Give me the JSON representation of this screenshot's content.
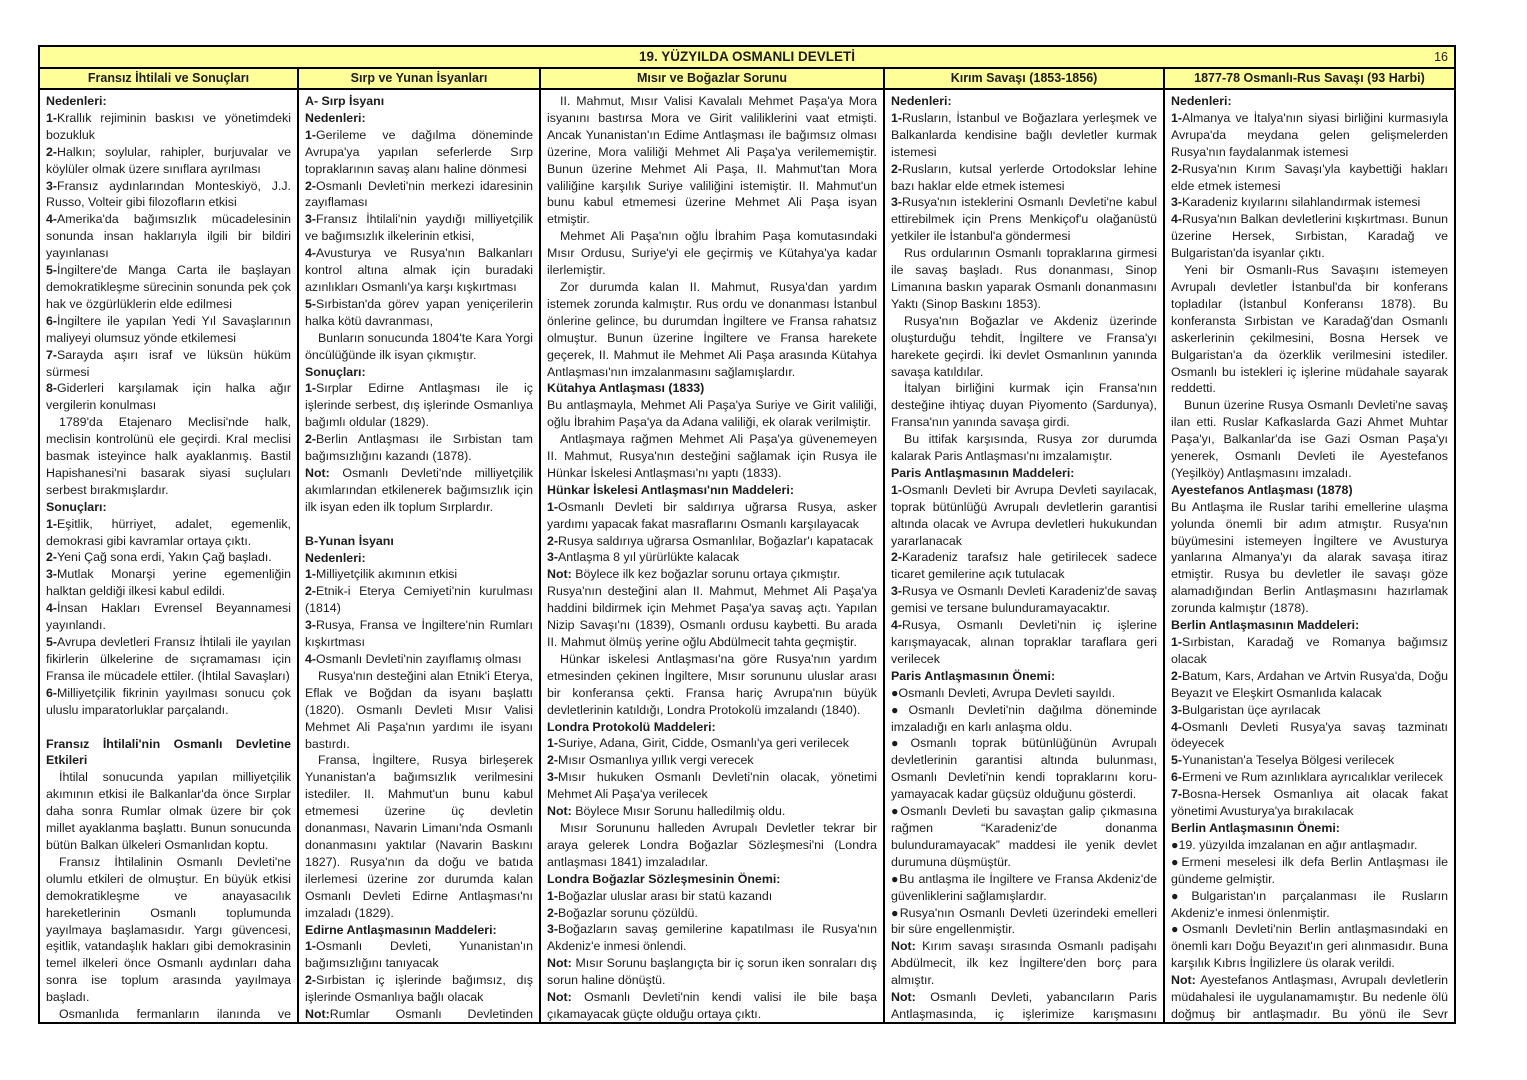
{
  "page": {
    "title": "19. YÜZYILDA OSMANLI DEVLETİ",
    "number": "16"
  },
  "colors": {
    "header_bg": "#FFFF99",
    "border": "#000000",
    "text": "#1c1c1c"
  },
  "columns": [
    {
      "header": "Fransız İhtilali ve Sonuçları",
      "blocks": [
        {
          "h": 1,
          "t": "Nedenleri:"
        },
        {
          "b": "1-",
          "t": "Krallık rejiminin baskısı ve yönetimdeki bozukluk"
        },
        {
          "b": "2-",
          "t": "Halkın; soylular, rahipler, burjuvalar ve köylüler olmak üzere sınıflara ayrılması"
        },
        {
          "b": "3-",
          "t": "Fransız aydınlarından Monteskiyö, J.J. Russo, Volteir gibi filozofların etkisi"
        },
        {
          "b": "4-",
          "t": "Amerika'da bağımsızlık mücadelesinin sonunda insan haklarıyla ilgili bir bildiri yayınlanası"
        },
        {
          "b": "5-",
          "t": "İngiltere'de Manga Carta ile başlayan demokratikleşme sürecinin sonunda pek çok hak ve özgürlüklerin elde edilmesi"
        },
        {
          "b": "6-",
          "t": "İngiltere ile yapılan Yedi Yıl Savaşlarının maliyeyi olumsuz yönde etkilemesi"
        },
        {
          "b": "7-",
          "t": "Sarayda aşırı israf ve lüksün hüküm sürmesi"
        },
        {
          "b": "8-",
          "t": "Giderleri karşılamak için halka ağır vergilerin konulması"
        },
        {
          "i": 1,
          "t": "1789'da Etajenaro Meclisi'nde halk, meclisin kontrolünü ele geçirdi. Kral meclisi basmak isteyince halk ayaklanmış. Bastil Hapishanesi'ni basarak siyasi suçluları serbest bırakmışlardır."
        },
        {
          "h": 1,
          "t": "Sonuçları:"
        },
        {
          "b": "1-",
          "t": "Eşitlik, hürriyet, adalet, egemenlik, demokrasi gibi kavramlar ortaya çıktı."
        },
        {
          "b": "2-",
          "t": "Yeni Çağ sona erdi, Yakın Çağ başladı."
        },
        {
          "b": "3-",
          "t": "Mutlak Monarşi yerine egemenliğin halktan geldiği ilkesi kabul edildi."
        },
        {
          "b": "4-",
          "t": "İnsan Hakları Evrensel Beyannamesi yayınlandı."
        },
        {
          "b": "5-",
          "t": "Avrupa devletleri Fransız İhtilali ile yayılan fikirlerin ülkelerine de sıçramaması için Fransa ile mücadele ettiler. (İhtilal Savaşları)"
        },
        {
          "b": "6-",
          "t": "Milliyetçilik fikrinin yayılması sonucu çok uluslu imparatorluklar parçalandı."
        },
        {
          "h": 1,
          "gap": 1,
          "t": "Fransız İhtilali'nin Osmanlı Devletine Etkileri"
        },
        {
          "i": 1,
          "t": "İhtilal sonucunda yapılan milliyetçilik akımının etkisi ile Balkanlar'da önce Sırplar daha sonra Rumlar olmak üzere bir çok millet ayaklanma başlattı. Bunun sonucunda bütün Balkan ülkeleri Osmanlıdan koptu."
        },
        {
          "i": 1,
          "t": "Fransız İhtilalinin Osmanlı Devleti'ne olumlu etkileri de olmuştur. En büyük etkisi demokratikleşme ve anayasacılık hareketlerinin Osmanlı toplumunda yayılmaya başlamasıdır. Yargı güvencesi, eşitlik, vatandaşlık hakları gibi demokrasinin temel ilkeleri önce Osmanlı aydınları daha sonra ise toplum arasında yayılmaya başladı."
        },
        {
          "i": 1,
          "t": "Osmanlıda fermanların ilanında ve meşrutiyetin kabulünde etkili olmuştur."
        }
      ]
    },
    {
      "header": "Sırp ve Yunan İsyanları",
      "blocks": [
        {
          "h": 1,
          "t": "A- Sırp İsyanı"
        },
        {
          "h": 1,
          "t": "Nedenleri:"
        },
        {
          "b": "1-",
          "t": "Gerileme ve dağılma döneminde Avrupa'ya yapılan seferlerde Sırp topraklarının savaş alanı haline dönmesi"
        },
        {
          "b": "2-",
          "t": "Osmanlı Devleti'nin merkezi idaresinin zayıflaması"
        },
        {
          "b": "3-",
          "t": "Fransız İhtilali'nin yaydığı milliyetçilik ve bağımsızlık ilkelerinin etkisi,"
        },
        {
          "b": "4-",
          "t": "Avusturya ve Rusya'nın Balkanları kontrol altına almak için buradaki azınlıkları Osmanlı'ya karşı kışkırtması"
        },
        {
          "b": "5-",
          "t": "Sırbistan'da görev yapan yeniçerilerin halka kötü davranması,"
        },
        {
          "i": 1,
          "t": "Bunların sonucunda 1804'te Kara Yorgi öncülüğünde ilk isyan çıkmıştır."
        },
        {
          "h": 1,
          "t": "Sonuçları:"
        },
        {
          "b": "1-",
          "t": "Sırplar Edirne Antlaşması ile iç işlerinde serbest, dış işlerinde Osmanlıya bağımlı oldular (1829)."
        },
        {
          "b": "2-",
          "t": "Berlin Antlaşması ile Sırbistan tam bağımsızlığını kazandı (1878)."
        },
        {
          "b": "Not:",
          "t": " Osmanlı Devleti'nde milliyetçilik akımlarından etkilenerek bağımsızlık için ilk isyan eden ilk toplum Sırplardır."
        },
        {
          "h": 1,
          "gap": 1,
          "t": "B-Yunan İsyanı"
        },
        {
          "h": 1,
          "t": "Nedenleri:"
        },
        {
          "b": "1-",
          "t": "Milliyetçilik akımının etkisi"
        },
        {
          "b": "2-",
          "t": "Etnik-i Eterya Cemiyeti'nin kurulması (1814)"
        },
        {
          "b": "3-",
          "t": "Rusya, Fransa ve İngiltere'nin Rumları kışkırtması"
        },
        {
          "b": "4-",
          "t": "Osmanlı Devleti'nin zayıflamış olması"
        },
        {
          "i": 1,
          "t": "Rusya'nın desteğini alan Etnik'i Eterya, Eflak ve Boğdan da isyanı başlattı (1820). Osmanlı Devleti Mısır Valisi Mehmet Ali Paşa'nın yardımı ile isyanı bastırdı."
        },
        {
          "i": 1,
          "t": "Fransa, İngiltere, Rusya birleşerek Yunanistan'a bağımsızlık verilmesini istediler. II. Mahmut'un bunu kabul etmemesi üzerine üç devletin donanması, Navarin Limanı'nda Osmanlı donanmasını yaktılar (Navarin Baskını 1827). Rusya'nın da doğu ve batıda ilerlemesi üzerine zor durumda kalan Osmanlı Devleti Edirne Antlaşması'nı imzaladı (1829)."
        },
        {
          "h": 1,
          "t": "Edirne Antlaşmasının Maddeleri:"
        },
        {
          "b": "1-",
          "t": "Osmanlı Devleti, Yunanistan'ın bağımsızlığını tanıyacak"
        },
        {
          "b": "2-",
          "t": "Sırbistan iç işlerinde bağımsız, dış işlerinde Osmanlıya bağlı olacak"
        },
        {
          "b": "Not:",
          "t": "Rumlar Osmanlı Devletinden ayrılarak bağımsız olan ilk millet olmuştur."
        }
      ]
    },
    {
      "header": "Mısır ve Boğazlar Sorunu",
      "blocks": [
        {
          "i": 1,
          "t": "II. Mahmut, Mısır Valisi Kavalalı Mehmet Paşa'ya Mora isyanını bastırsa Mora ve Girit valiliklerini vaat etmişti. Ancak Yunanistan'ın Edime Antlaşması ile bağımsız olması üzerine, Mora valiliği Mehmet Ali Paşa'ya verilememiştir. Bunun üzerine Mehmet Ali Paşa, II. Mahmut'tan Mora valiliğine karşılık Suriye valiliğini istemiştir. II. Mahmut'un bunu kabul etmemesi üzerine Mehmet Ali Paşa isyan etmiştir."
        },
        {
          "i": 1,
          "t": "Mehmet Ali Paşa'nın oğlu İbrahim Paşa komutasındaki Mısır Ordusu, Suriye'yi ele geçirmiş ve Kütahya'ya kadar ilerlemiştir."
        },
        {
          "i": 1,
          "t": "Zor durumda kalan II. Mahmut, Rusya'dan yardım istemek zorunda kalmıştır. Rus ordu ve donanması İstanbul önlerine gelince, bu durumdan İngiltere ve Fransa rahatsız olmuştur. Bunun üzerine İngiltere ve Fransa harekete geçerek, II. Mahmut ile Mehmet Ali Paşa arasında Kütahya Antlaşması'nın imzalanmasını sağlamışlardır."
        },
        {
          "h": 1,
          "t": "Kütahya Antlaşması (1833)"
        },
        {
          "t": "Bu antlaşmayla, Mehmet Ali Paşa'ya Suriye ve Girit valiliği, oğlu İbrahim Paşa'ya da Adana valiliği, ek olarak verilmiştir."
        },
        {
          "i": 1,
          "t": "Antlaşmaya rağmen Mehmet Ali Paşa'ya güvenemeyen II. Mahmut, Rusya'nın desteğini sağlamak için Rusya ile Hünkar İskelesi Antlaşması'nı yaptı (1833)."
        },
        {
          "h": 1,
          "t": "Hünkar İskelesi Antlaşması'nın Maddeleri:"
        },
        {
          "b": "1-",
          "t": "Osmanlı Devleti bir saldırıya uğrarsa Rusya, asker yardımı yapacak fakat masraflarını Osmanlı karşılayacak"
        },
        {
          "b": "2-",
          "t": "Rusya saldırıya uğrarsa Osmanlılar, Boğazlar'ı kapatacak"
        },
        {
          "b": "3-",
          "t": "Antlaşma 8 yıl yürürlükte kalacak"
        },
        {
          "b": "Not:",
          "t": " Böylece ilk kez boğazlar sorunu ortaya çıkmıştır."
        },
        {
          "t": "Rusya'nın desteğini alan II. Mahmut, Mehmet Ali Paşa'ya haddini bildirmek için Mehmet Paşa'ya savaş açtı. Yapılan Nizip Savaşı'nı (1839), Osmanlı ordusu kaybetti. Bu arada II. Mahmut ölmüş yerine oğlu Abdülmecit tahta geçmiştir."
        },
        {
          "i": 1,
          "t": "Hünkar iskelesi Antlaşması'na göre Rusya'nın yardım etmesinden çekinen İngiltere, Mısır sorununu uluslar arası bir konferansa çekti. Fransa hariç Avrupa'nın büyük devletlerinin katıldığı, Londra Protokolü imzalandı (1840)."
        },
        {
          "h": 1,
          "t": "Londra Protokolü Maddeleri:"
        },
        {
          "b": "1-",
          "t": "Suriye, Adana, Girit, Cidde, Osmanlı'ya geri verilecek"
        },
        {
          "b": "2-",
          "t": "Mısır Osmanlıya yıllık vergi verecek"
        },
        {
          "b": "3-",
          "t": "Mısır hukuken Osmanlı Devleti'nin olacak, yönetimi Mehmet Ali Paşa'ya verilecek"
        },
        {
          "b": "Not:",
          "t": " Böylece Mısır Sorunu halledilmiş oldu."
        },
        {
          "i": 1,
          "t": "Mısır Sorununu halleden Avrupalı Devletler tekrar bir araya gelerek Londra Boğazlar Sözleşmesi'ni (Londra antlaşması 1841) imzaladılar."
        },
        {
          "h": 1,
          "t": "Londra Boğazlar Sözleşmesinin Önemi:"
        },
        {
          "b": "1-",
          "t": "Boğazlar uluslar arası bir statü kazandı"
        },
        {
          "b": "2-",
          "t": "Boğazlar sorunu çözüldü."
        },
        {
          "b": "3-",
          "t": "Boğazların savaş gemilerine kapatılması ile Rusya'nın Akdeniz'e inmesi önlendi."
        },
        {
          "b": "Not:",
          "t": " Mısır Sorunu başlangıçta bir iç sorun iken sonraları dış sorun haline dönüştü."
        },
        {
          "b": "Not:",
          "t": " Osmanlı Devleti'nin kendi valisi ile bile başa çıkamayacak güçte olduğu ortaya çıktı."
        }
      ]
    },
    {
      "header": "Kırım Savaşı (1853-1856)",
      "blocks": [
        {
          "h": 1,
          "t": "Nedenleri:"
        },
        {
          "b": "1-",
          "t": "Rusların, İstanbul ve Boğazlara yerleşmek ve Balkanlarda kendisine bağlı devletler kurmak istemesi"
        },
        {
          "b": "2-",
          "t": "Rusların, kutsal yerlerde Ortodokslar lehine bazı haklar elde etmek istemesi"
        },
        {
          "b": "3-",
          "t": "Rusya'nın isteklerini Osmanlı Devleti'ne kabul ettirebilmek için Prens Menkiçof'u olağanüstü yetkiler ile İstanbul'a göndermesi"
        },
        {
          "i": 1,
          "t": "Rus ordularının Osmanlı topraklarına girmesi ile savaş başladı. Rus donanması, Sinop Limanına baskın yaparak Osmanlı donanmasını Yaktı (Sinop Baskını 1853)."
        },
        {
          "i": 1,
          "t": "Rusya'nın Boğazlar ve Akdeniz üzerinde oluşturduğu tehdit, İngiltere ve Fransa'yı harekete geçirdi. İki devlet Osmanlının yanında savaşa katıldılar."
        },
        {
          "i": 1,
          "t": "İtalyan birliğini kurmak için Fransa'nın desteğine ihtiyaç duyan Piyomento (Sardunya), Fransa'nın yanında savaşa girdi."
        },
        {
          "i": 1,
          "t": "Bu ittifak karşısında, Rusya zor durumda kalarak Paris Antlaşması'nı imzalamıştır."
        },
        {
          "h": 1,
          "t": "Paris Antlaşmasının Maddeleri:"
        },
        {
          "b": "1-",
          "t": "Osmanlı Devleti bir Avrupa Devleti sayılacak, toprak bütünlüğü Avrupalı devletlerin garantisi altında olacak ve Avrupa devletleri hukukundan yararlanacak"
        },
        {
          "b": "2-",
          "t": "Karadeniz tarafsız hale getirilecek sadece ticaret gemilerine açık tutulacak"
        },
        {
          "b": "3-",
          "t": "Rusya ve Osmanlı Devleti Karadeniz'de savaş gemisi ve tersane bulunduramayacaktır."
        },
        {
          "b": "4-",
          "t": "Rusya, Osmanlı Devleti'nin iç işlerine karışmayacak, alınan topraklar taraflara geri verilecek"
        },
        {
          "h": 1,
          "t": "Paris Antlaşmasının Önemi:"
        },
        {
          "b": "●",
          "t": "Osmanlı Devleti, Avrupa Devleti sayıldı."
        },
        {
          "b": "●",
          "t": "Osmanlı Devleti'nin dağılma döneminde imzaladığı en karlı anlaşma oldu."
        },
        {
          "b": "●",
          "t": "Osmanlı toprak bütünlüğünün Avrupalı devletlerinin garantisi altında bulunması, Osmanlı Devleti'nin kendi topraklarını koru-yamayacak kadar güçsüz olduğunu gösterdi."
        },
        {
          "b": "●",
          "t": "Osmanlı Devleti bu savaştan galip çıkmasına rağmen “Karadeniz'de donanma bulunduramayacak” maddesi ile yenik devlet durumuna düşmüştür."
        },
        {
          "b": "●",
          "t": "Bu antlaşma ile İngiltere ve Fransa Akdeniz'de güvenliklerini sağlamışlardır."
        },
        {
          "b": "●",
          "t": "Rusya'nın Osmanlı Devleti üzerindeki emelleri bir süre engellenmiştir."
        },
        {
          "b": "Not:",
          "t": " Kırım savaşı sırasında Osmanlı padişahı Abdülmecit, ilk kez İngiltere'den borç para almıştır."
        },
        {
          "b": "Not:",
          "t": " Osmanlı Devleti, yabancıların Paris Antlaşmasında, iç işlerimize karışmasını engellemek için Islahat Fermanı'nı ilan etti."
        }
      ]
    },
    {
      "header": "1877-78 Osmanlı-Rus Savaşı (93 Harbi)",
      "blocks": [
        {
          "h": 1,
          "t": "Nedenleri:"
        },
        {
          "b": "1-",
          "t": "Almanya ve İtalya'nın siyasi birliğini kurmasıyla Avrupa'da meydana gelen gelişmelerden Rusya'nın faydalanmak istemesi"
        },
        {
          "b": "2-",
          "t": "Rusya'nın Kırım Savaşı'yla kaybettiği hakları elde etmek istemesi"
        },
        {
          "b": "3-",
          "t": "Karadeniz kıyılarını silahlandırmak istemesi"
        },
        {
          "b": "4-",
          "t": "Rusya'nın Balkan devletlerini kışkırtması. Bunun üzerine Hersek, Sırbistan, Karadağ ve Bulgaristan'da isyanlar çıktı."
        },
        {
          "i": 1,
          "t": "Yeni bir Osmanlı-Rus Savaşını istemeyen Avrupalı devletler İstanbul'da bir konferans topladılar (İstanbul Konferansı 1878). Bu konferansta Sırbistan ve Karadağ'dan Osmanlı askerlerinin çekilmesini, Bosna Hersek ve Bulgaristan'a da özerklik verilmesini istediler. Osmanlı bu istekleri iç işlerine müdahale sayarak reddetti."
        },
        {
          "i": 1,
          "t": "Bunun üzerine Rusya Osmanlı Devleti'ne savaş ilan etti. Ruslar Kafkaslarda Gazi Ahmet Muhtar Paşa'yı, Balkanlar'da ise Gazi Osman Paşa'yı yenerek, Osmanlı Devleti ile Ayestefanos (Yeşilköy) Antlaşmasını imzaladı."
        },
        {
          "h": 1,
          "t": "Ayestefanos Antlaşması (1878)"
        },
        {
          "t": "Bu Antlaşma ile Ruslar tarihi emellerine ulaşma yolunda önemli bir adım atmıştır. Rusya'nın büyümesini istemeyen İngiltere ve Avusturya yanlarına Almanya'yı da alarak savaşa itiraz etmiştir. Rusya bu devletler ile savaşı göze alamadığından Berlin Antlaşmasını hazırlamak zorunda kalmıştır (1878)."
        },
        {
          "h": 1,
          "t": "Berlin Antlaşmasının Maddeleri:"
        },
        {
          "b": "1-",
          "t": "Sırbistan, Karadağ ve Romanya bağımsız olacak"
        },
        {
          "b": "2-",
          "t": "Batum, Kars, Ardahan ve Artvin Rusya'da, Doğu Beyazıt ve Eleşkirt Osmanlıda kalacak"
        },
        {
          "b": "3-",
          "t": "Bulgaristan üçe ayrılacak"
        },
        {
          "b": "4-",
          "t": "Osmanlı Devleti Rusya'ya savaş tazminatı ödeyecek"
        },
        {
          "b": "5-",
          "t": "Yunanistan'a Teselya Bölgesi verilecek"
        },
        {
          "b": "6-",
          "t": "Ermeni ve Rum azınlıklara ayrıcalıklar verilecek"
        },
        {
          "b": "7-",
          "t": "Bosna-Hersek Osmanlıya ait olacak fakat yönetimi Avusturya'ya bırakılacak"
        },
        {
          "h": 1,
          "t": "Berlin Antlaşmasının Önemi:"
        },
        {
          "b": "●",
          "t": "19. yüzyılda imzalanan en ağır antlaşmadır."
        },
        {
          "b": "●",
          "t": "Ermeni meselesi ilk defa Berlin Antlaşması ile gündeme gelmiştir."
        },
        {
          "b": "●",
          "t": "Bulgaristan'ın parçalanması ile Rusların Akdeniz'e inmesi önlenmiştir."
        },
        {
          "b": "●",
          "t": "Osmanlı Devleti'nin Berlin antlaşmasındaki en önemli karı Doğu Beyazıt'ın geri alınmasıdır. Buna karşılık Kıbrıs İngilizlere üs olarak verildi."
        },
        {
          "b": "Not:",
          "t": " Ayestefanos Antlaşması, Avrupalı devletlerin müdahalesi ile uygulanamamıştır. Bu nedenle ölü doğmuş bir antlaşmadır. Bu yönü ile Sevr Antlaşması'na benzer."
        }
      ]
    }
  ]
}
